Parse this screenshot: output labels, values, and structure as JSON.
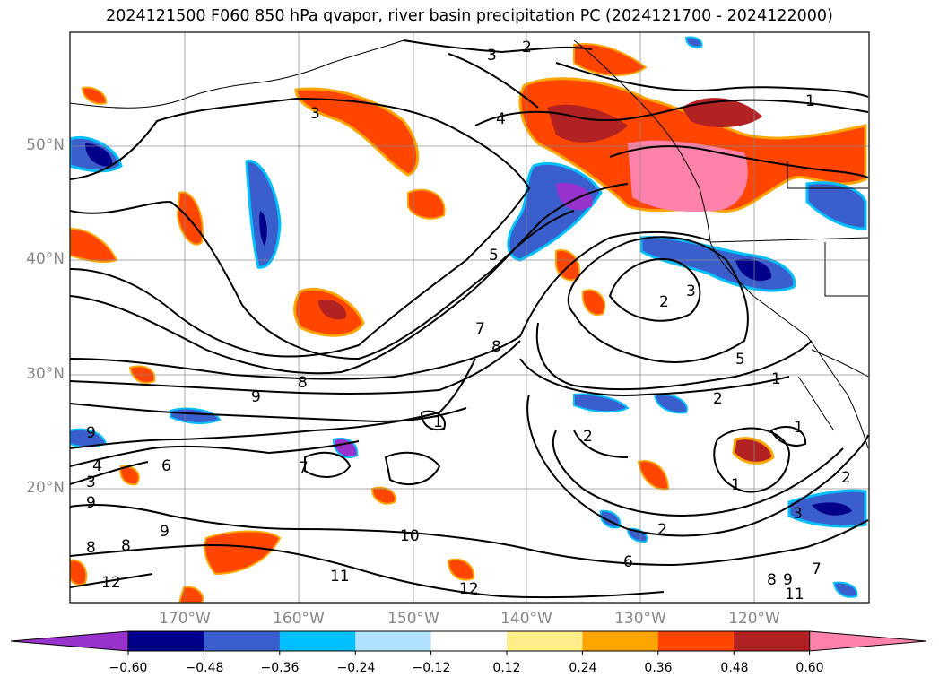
{
  "title": "2024121500 F060 850 hPa qvapor, river basin precipitation PC (2024121700 - 2024122000)",
  "lat_labels": [
    {
      "text": "50°N",
      "lat": 50
    },
    {
      "text": "40°N",
      "lat": 40
    },
    {
      "text": "30°N",
      "lat": 30
    },
    {
      "text": "20°N",
      "lat": 20
    }
  ],
  "lon_labels": [
    {
      "text": "170°W",
      "lon": -170
    },
    {
      "text": "160°W",
      "lon": -160
    },
    {
      "text": "150°W",
      "lon": -150
    },
    {
      "text": "140°W",
      "lon": -140
    },
    {
      "text": "130°W",
      "lon": -130
    },
    {
      "text": "120°W",
      "lon": -120
    }
  ],
  "colorbar": {
    "ticks": [
      "−0.60",
      "−0.48",
      "−0.36",
      "−0.24",
      "−0.12",
      "0.12",
      "0.24",
      "0.36",
      "0.48",
      "0.60"
    ],
    "colors": [
      "#9932cc",
      "#00008b",
      "#3a5fcd",
      "#00bfff",
      "#b0e2ff",
      "#ffffff",
      "#ffec8b",
      "#ffa500",
      "#ff4500",
      "#b22222",
      "#ff82ab"
    ]
  },
  "contour_labels": [
    "3",
    "2",
    "4",
    "1",
    "5",
    "7",
    "8",
    "9",
    "6",
    "10",
    "11",
    "12"
  ]
}
